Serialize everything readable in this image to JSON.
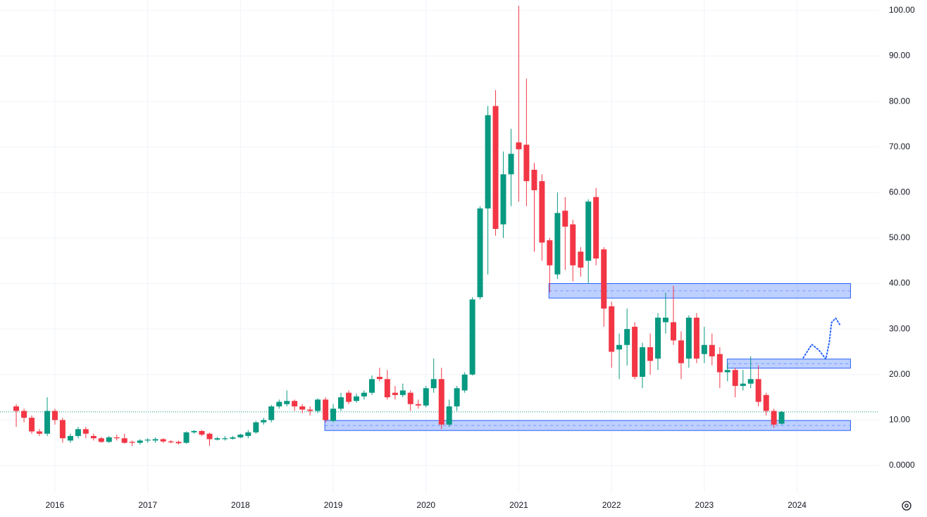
{
  "chart_data": {
    "type": "candlestick",
    "x": [
      2015.583,
      2015.667,
      2015.75,
      2015.833,
      2015.917,
      2016,
      2016.083,
      2016.167,
      2016.25,
      2016.333,
      2016.417,
      2016.5,
      2016.583,
      2016.667,
      2016.75,
      2016.833,
      2016.917,
      2017,
      2017.083,
      2017.167,
      2017.25,
      2017.333,
      2017.417,
      2017.5,
      2017.583,
      2017.667,
      2017.75,
      2017.833,
      2017.917,
      2018,
      2018.083,
      2018.167,
      2018.25,
      2018.333,
      2018.417,
      2018.5,
      2018.583,
      2018.667,
      2018.75,
      2018.833,
      2018.917,
      2019,
      2019.083,
      2019.167,
      2019.25,
      2019.333,
      2019.417,
      2019.5,
      2019.583,
      2019.667,
      2019.75,
      2019.833,
      2019.917,
      2020,
      2020.083,
      2020.167,
      2020.25,
      2020.333,
      2020.417,
      2020.5,
      2020.583,
      2020.667,
      2020.75,
      2020.833,
      2020.917,
      2021,
      2021.083,
      2021.167,
      2021.25,
      2021.333,
      2021.417,
      2021.5,
      2021.583,
      2021.667,
      2021.75,
      2021.833,
      2021.917,
      2022,
      2022.083,
      2022.167,
      2022.25,
      2022.333,
      2022.417,
      2022.5,
      2022.583,
      2022.667,
      2022.75,
      2022.833,
      2022.917,
      2023,
      2023.083,
      2023.167,
      2023.25,
      2023.333,
      2023.417,
      2023.5,
      2023.583,
      2023.667,
      2023.75,
      2023.833
    ],
    "open": [
      13,
      12,
      10.5,
      7.5,
      7,
      12,
      10,
      5.5,
      6.5,
      8,
      6.5,
      6,
      5.2,
      6.2,
      6,
      5.2,
      5,
      5.5,
      5.5,
      5.8,
      5.3,
      5.2,
      5,
      7.3,
      7.6,
      7,
      5.7,
      5.8,
      5.9,
      6.2,
      6.5,
      7.3,
      9.5,
      10,
      13,
      13.5,
      14.2,
      13,
      12.3,
      12,
      14.5,
      9.8,
      12.5,
      16,
      14.2,
      15.2,
      16,
      19.5,
      19,
      16,
      15.5,
      16,
      13.5,
      13.2,
      17,
      19,
      9,
      13,
      16.5,
      20,
      37,
      56.5,
      79,
      53,
      64,
      71,
      70.5,
      65,
      62.5,
      49.5,
      42,
      56,
      53,
      47,
      45,
      59,
      47.5,
      35,
      25.5,
      26.5,
      30.5,
      19.5,
      26,
      23.5,
      31.5,
      31.5,
      27.5,
      23.5,
      32.5,
      24.5,
      26.5,
      24.5,
      20.5,
      21,
      17.5,
      18,
      19,
      15.5,
      12,
      9.2
    ],
    "high": [
      13.5,
      12.5,
      11,
      8,
      15,
      12.5,
      10.5,
      7,
      8.5,
      8.5,
      7,
      6.3,
      6.5,
      6.8,
      7,
      5.5,
      5.8,
      6,
      6.2,
      6,
      5.6,
      5.5,
      7.5,
      7.8,
      7.8,
      7.2,
      6.3,
      6.5,
      6.5,
      7,
      7.8,
      9.8,
      10.5,
      13.3,
      14.5,
      16.5,
      14.5,
      13.5,
      13,
      14.8,
      15,
      13.5,
      16,
      16.5,
      15.8,
      16.5,
      19.8,
      21.5,
      21,
      17.5,
      18,
      16.5,
      14.5,
      17.5,
      23.5,
      21.5,
      14.5,
      17.5,
      20.5,
      37,
      57,
      79,
      82.5,
      69,
      74,
      101,
      85,
      66.5,
      64,
      50,
      60,
      59,
      54,
      48,
      58.5,
      61,
      48,
      36,
      29,
      34.5,
      31.5,
      27,
      29,
      33.5,
      38,
      39.5,
      29.5,
      33,
      33.5,
      30.5,
      29,
      26,
      22.5,
      21.5,
      21,
      24,
      22,
      16,
      12.5,
      12
    ],
    "low": [
      8.5,
      9.5,
      7,
      6.5,
      6.5,
      9,
      5,
      5,
      6,
      6,
      5.5,
      5,
      5,
      5.5,
      4.8,
      4.3,
      4.6,
      5,
      5,
      5,
      4.9,
      4.6,
      4.8,
      7,
      6.5,
      4.3,
      5.5,
      5.5,
      5.7,
      6,
      6,
      7,
      9,
      9.5,
      12.5,
      13,
      12,
      11.5,
      11,
      11.5,
      9.5,
      9.5,
      12,
      13.5,
      13.8,
      14.5,
      15.5,
      18.5,
      14.5,
      14.5,
      15,
      12,
      12.5,
      12.8,
      16,
      8,
      8.5,
      12,
      16,
      19.8,
      36.5,
      42,
      50.5,
      50,
      57,
      58,
      57,
      47,
      45,
      38,
      41,
      43,
      40.5,
      41.5,
      40,
      44,
      30.5,
      21.5,
      19,
      22,
      19,
      17,
      20,
      21,
      29,
      26.5,
      19,
      21.5,
      22.5,
      22.5,
      22,
      17,
      18.5,
      15,
      16.5,
      17,
      13,
      11,
      8.3,
      9
    ],
    "close": [
      12,
      10.5,
      7.5,
      7,
      12,
      10,
      6,
      6.5,
      8,
      7,
      6,
      5.2,
      6.2,
      6,
      5,
      5,
      5.5,
      5.7,
      5.8,
      5.3,
      5.1,
      4.9,
      7.3,
      7.6,
      6.8,
      5.8,
      6,
      6,
      6.2,
      6.8,
      7.3,
      9.5,
      10,
      13,
      14,
      14.2,
      13,
      12.3,
      12,
      14.5,
      10,
      12.5,
      15,
      14,
      15.2,
      16,
      19,
      19,
      15,
      15.5,
      16.5,
      13.5,
      13.2,
      17,
      19,
      9,
      13,
      17,
      20,
      36.5,
      56.5,
      77,
      52,
      64,
      68.5,
      69.5,
      62.5,
      60.5,
      49,
      44,
      55.5,
      52.5,
      44,
      43.5,
      58,
      45.5,
      34.5,
      25,
      26.5,
      30,
      19.5,
      26,
      23,
      32.5,
      32.5,
      27.5,
      22.5,
      32.5,
      23.5,
      26.5,
      24,
      20.5,
      21,
      17.5,
      18,
      19,
      14,
      12,
      9,
      11.8
    ],
    "up_color": "#089981",
    "down_color": "#f23645",
    "price_line": 11.8,
    "zones": [
      {
        "x": [
          2021.325,
          2024.576
        ],
        "y": [
          36.8,
          40
        ]
      },
      {
        "x": [
          2023.247,
          2024.576
        ],
        "y": [
          21.4,
          23.4
        ]
      },
      {
        "x": [
          2018.909,
          2024.576
        ],
        "y": [
          7.7,
          9.9
        ]
      }
    ],
    "zone_color": "#2962ff",
    "projection": {
      "x": [
        2024.067,
        2024.158,
        2024.234,
        2024.31,
        2024.348,
        2024.371,
        2024.416,
        2024.469
      ],
      "y": [
        23.7,
        26.6,
        25.4,
        23.4,
        27.2,
        31.4,
        32.4,
        30.7
      ],
      "color": "#2962ff"
    },
    "xlim": [
      2015.408,
      2024.884
    ],
    "ylim": [
      -6.04,
      102.3
    ],
    "xticks": [
      2016,
      2017,
      2018,
      2019,
      2020,
      2021,
      2022,
      2023,
      2024
    ],
    "yticks": [
      {
        "value": 0,
        "label": "0.0000"
      },
      {
        "value": 10,
        "label": "10.00"
      },
      {
        "value": 20,
        "label": "20.00"
      },
      {
        "value": 30,
        "label": "30.00"
      },
      {
        "value": 40,
        "label": "40.00"
      },
      {
        "value": 50,
        "label": "50.00"
      },
      {
        "value": 60,
        "label": "60.00"
      },
      {
        "value": 70,
        "label": "70.00"
      },
      {
        "value": 80,
        "label": "80.00"
      },
      {
        "value": 90,
        "label": "90.00"
      },
      {
        "value": 100,
        "label": "100.00"
      }
    ],
    "grid": true
  }
}
